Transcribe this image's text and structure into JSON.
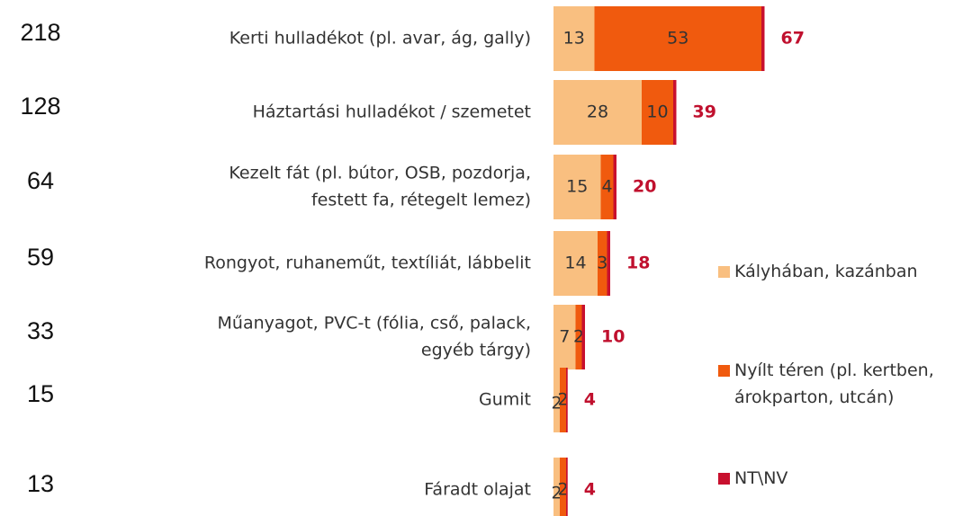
{
  "chart_data": {
    "type": "stacked-bar",
    "counts": [
      218,
      128,
      64,
      59,
      33,
      15,
      13
    ],
    "categories": [
      [
        "Kerti hulladékot (pl. avar, ág, gally)"
      ],
      [
        "Háztartási hulladékot / szemetet"
      ],
      [
        "Kezelt fát (pl. bútor, OSB, pozdorja,",
        "festett fa, rétegelt lemez)"
      ],
      [
        "Rongyot, ruhaneműt, textíliát, lábbelit"
      ],
      [
        "Műanyagot, PVC-t (fólia, cső, palack,",
        "egyéb tárgy)"
      ],
      [
        "Gumit"
      ],
      [
        "Fáradt olajat"
      ]
    ],
    "series": [
      {
        "name": "Kályhában, kazánban",
        "color": "#f9bf80",
        "values": [
          13,
          28,
          15,
          14,
          7,
          2,
          2
        ]
      },
      {
        "name": "Nyílt téren (pl. kertben, árokparton, utcán)",
        "color": "#f05a0e",
        "values": [
          53,
          10,
          4,
          3,
          2,
          2,
          2
        ]
      },
      {
        "name": "NT\\NV",
        "color": "#c8102e",
        "values": [
          1,
          1,
          1,
          1,
          1,
          0.5,
          0.5
        ]
      }
    ],
    "totals": [
      67,
      39,
      20,
      18,
      10,
      4,
      4
    ],
    "total_color": "#c0102e",
    "legend": "right"
  }
}
